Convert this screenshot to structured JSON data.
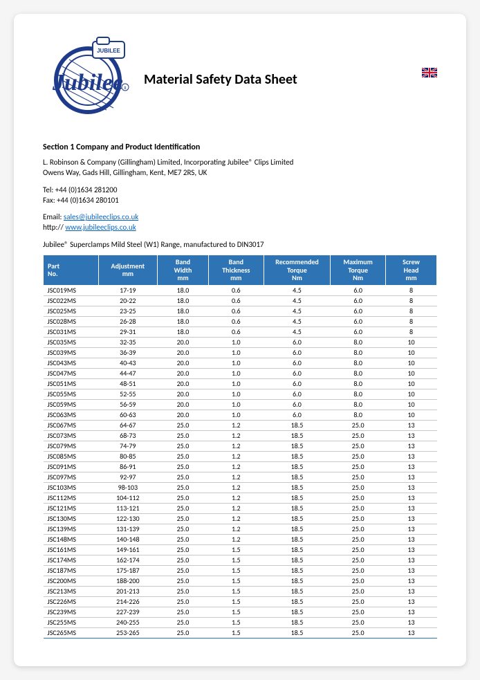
{
  "header": {
    "title": "Material Safety Data Sheet",
    "logo_word": "Jubilee"
  },
  "section1": {
    "heading": "Section 1 Company and Product Identification",
    "company_line1": "L. Robinson & Company (Gillingham) Limited, Incorporating Jubilee® Clips Limited",
    "company_line2": "Owens Way, Gads Hill, Gillingham, Kent, ME7 2RS, UK",
    "tel": "Tel: +44 (0)1634 281200",
    "fax": "Fax: +44 (0)1634 280101",
    "email_label": "Email: ",
    "email": "sales@jubileeclips.co.uk",
    "http_label": "http:// ",
    "website": "www.jubileeclips.co.uk",
    "range_line": "Jubilee® Superclamps Mild Steel (W1) Range, manufactured to DIN3017"
  },
  "table": {
    "header_color": "#2e74b5",
    "columns": [
      {
        "l1": "Part",
        "l2": "No."
      },
      {
        "l1": "Adjustment",
        "l2": "mm"
      },
      {
        "l1": "Band",
        "l2": "Width",
        "l3": "mm"
      },
      {
        "l1": "Band",
        "l2": "Thickness",
        "l3": "mm"
      },
      {
        "l1": "Recommended",
        "l2": "Torque",
        "l3": "Nm"
      },
      {
        "l1": "Maximum",
        "l2": "Torque",
        "l3": "Nm"
      },
      {
        "l1": "Screw",
        "l2": "Head",
        "l3": "mm"
      }
    ],
    "rows": [
      [
        "JSC019MS",
        "17-19",
        "18.0",
        "0.6",
        "4.5",
        "6.0",
        "8"
      ],
      [
        "JSC022MS",
        "20-22",
        "18.0",
        "0.6",
        "4.5",
        "6.0",
        "8"
      ],
      [
        "JSC025MS",
        "23-25",
        "18.0",
        "0.6",
        "4.5",
        "6.0",
        "8"
      ],
      [
        "JSC028MS",
        "26-28",
        "18.0",
        "0.6",
        "4.5",
        "6.0",
        "8"
      ],
      [
        "JSC031MS",
        "29-31",
        "18.0",
        "0.6",
        "4.5",
        "6.0",
        "8"
      ],
      [
        "JSC035MS",
        "32-35",
        "20.0",
        "1.0",
        "6.0",
        "8.0",
        "10"
      ],
      [
        "JSC039MS",
        "36-39",
        "20.0",
        "1.0",
        "6.0",
        "8.0",
        "10"
      ],
      [
        "JSC043MS",
        "40-43",
        "20.0",
        "1.0",
        "6.0",
        "8.0",
        "10"
      ],
      [
        "JSC047MS",
        "44-47",
        "20.0",
        "1.0",
        "6.0",
        "8.0",
        "10"
      ],
      [
        "JSC051MS",
        "48-51",
        "20.0",
        "1.0",
        "6.0",
        "8.0",
        "10"
      ],
      [
        "JSC055MS",
        "52-55",
        "20.0",
        "1.0",
        "6.0",
        "8.0",
        "10"
      ],
      [
        "JSC059MS",
        "56-59",
        "20.0",
        "1.0",
        "6.0",
        "8.0",
        "10"
      ],
      [
        "JSC063MS",
        "60-63",
        "20.0",
        "1.0",
        "6.0",
        "8.0",
        "10"
      ],
      [
        "JSC067MS",
        "64-67",
        "25.0",
        "1.2",
        "18.5",
        "25.0",
        "13"
      ],
      [
        "JSC073MS",
        "68-73",
        "25.0",
        "1.2",
        "18.5",
        "25.0",
        "13"
      ],
      [
        "JSC079MS",
        "74-79",
        "25.0",
        "1.2",
        "18.5",
        "25.0",
        "13"
      ],
      [
        "JSC085MS",
        "80-85",
        "25.0",
        "1.2",
        "18.5",
        "25.0",
        "13"
      ],
      [
        "JSC091MS",
        "86-91",
        "25.0",
        "1.2",
        "18.5",
        "25.0",
        "13"
      ],
      [
        "JSC097MS",
        "92-97",
        "25.0",
        "1.2",
        "18.5",
        "25.0",
        "13"
      ],
      [
        "JSC103MS",
        "98-103",
        "25.0",
        "1.2",
        "18.5",
        "25.0",
        "13"
      ],
      [
        "JSC112MS",
        "104-112",
        "25.0",
        "1.2",
        "18.5",
        "25.0",
        "13"
      ],
      [
        "JSC121MS",
        "113-121",
        "25.0",
        "1.2",
        "18.5",
        "25.0",
        "13"
      ],
      [
        "JSC130MS",
        "122-130",
        "25.0",
        "1.2",
        "18.5",
        "25.0",
        "13"
      ],
      [
        "JSC139MS",
        "131-139",
        "25.0",
        "1.2",
        "18.5",
        "25.0",
        "13"
      ],
      [
        "JSC148MS",
        "140-148",
        "25.0",
        "1.2",
        "18.5",
        "25.0",
        "13"
      ],
      [
        "JSC161MS",
        "149-161",
        "25.0",
        "1.5",
        "18.5",
        "25.0",
        "13"
      ],
      [
        "JSC174MS",
        "162-174",
        "25.0",
        "1.5",
        "18.5",
        "25.0",
        "13"
      ],
      [
        "JSC187MS",
        "175-187",
        "25.0",
        "1.5",
        "18.5",
        "25.0",
        "13"
      ],
      [
        "JSC200MS",
        "188-200",
        "25.0",
        "1.5",
        "18.5",
        "25.0",
        "13"
      ],
      [
        "JSC213MS",
        "201-213",
        "25.0",
        "1.5",
        "18.5",
        "25.0",
        "13"
      ],
      [
        "JSC226MS",
        "214-226",
        "25.0",
        "1.5",
        "18.5",
        "25.0",
        "13"
      ],
      [
        "JSC239MS",
        "227-239",
        "25.0",
        "1.5",
        "18.5",
        "25.0",
        "13"
      ],
      [
        "JSC255MS",
        "240-255",
        "25.0",
        "1.5",
        "18.5",
        "25.0",
        "13"
      ],
      [
        "JSC265MS",
        "253-265",
        "25.0",
        "1.5",
        "18.5",
        "25.0",
        "13"
      ]
    ]
  }
}
